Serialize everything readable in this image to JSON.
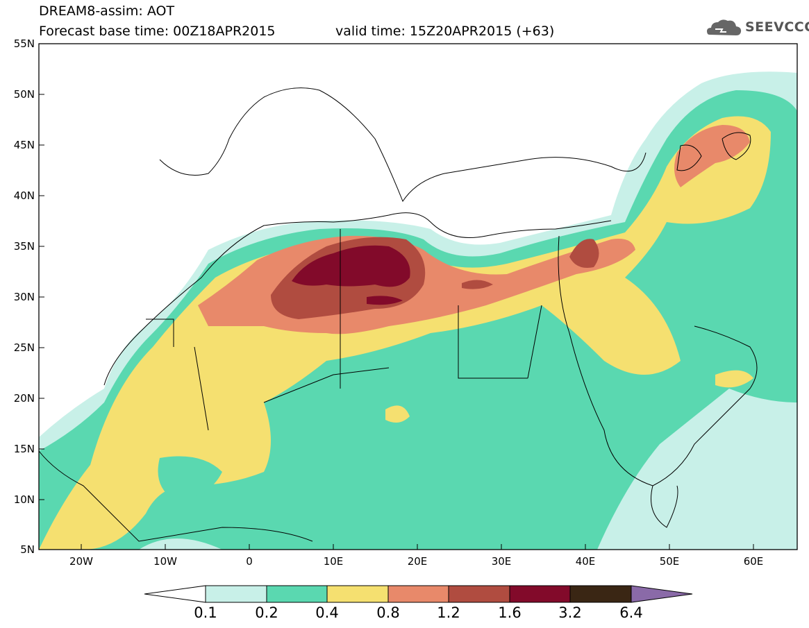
{
  "header": {
    "title_line1": "DREAM8-assim: AOT",
    "title_line2": "Forecast base time: 00Z18APR2015",
    "valid_time": "valid time: 15Z20APR2015 (+63)",
    "logo_text": "SEEVCCC"
  },
  "map": {
    "variable": "AOT",
    "lat_ticks": [
      "55N",
      "50N",
      "45N",
      "40N",
      "35N",
      "30N",
      "25N",
      "20N",
      "15N",
      "10N",
      "5N"
    ],
    "lon_ticks": [
      "20W",
      "10W",
      "0",
      "10E",
      "20E",
      "30E",
      "40E",
      "50E",
      "60E"
    ],
    "lon_range": [
      -25,
      65
    ],
    "lat_range": [
      5,
      55
    ]
  },
  "colorbar": {
    "labels": [
      "0.1",
      "0.2",
      "0.4",
      "0.8",
      "1.2",
      "1.6",
      "3.2",
      "6.4"
    ],
    "colors": {
      "under": "#ffffff",
      "bins": [
        "#c8f0e8",
        "#5ad8b0",
        "#f5e070",
        "#e8896a",
        "#b04c40",
        "#820a2a",
        "#3a2614"
      ],
      "over": "#8a6aa8"
    }
  }
}
